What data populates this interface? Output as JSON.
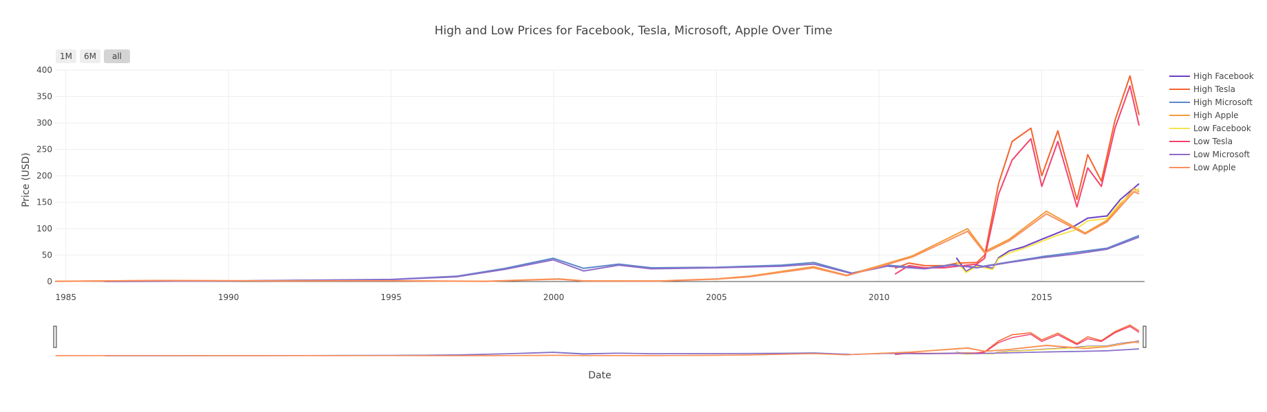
{
  "chart_data": {
    "type": "line",
    "title": "High and Low Prices for Facebook, Tesla, Microsoft, Apple Over Time",
    "xlabel": "Date",
    "ylabel": "Price (USD)",
    "xlim": [
      "1984-09-01",
      "2018-03-01"
    ],
    "ylim": [
      0,
      400
    ],
    "x_ticks": [
      "1985",
      "1990",
      "1995",
      "2000",
      "2005",
      "2010",
      "2015"
    ],
    "y_ticks": [
      "0",
      "50",
      "100",
      "150",
      "200",
      "250",
      "300",
      "350",
      "400"
    ],
    "grid": true,
    "legend_position": "right",
    "range_selector": {
      "buttons": [
        "1M",
        "6M",
        "all"
      ],
      "active": "all"
    },
    "range_slider": true,
    "series": [
      {
        "name": "High Facebook",
        "color": "#6a3fc4",
        "points": [
          [
            "2012-05-18",
            45
          ],
          [
            "2012-09-04",
            19
          ],
          [
            "2013-01-02",
            31
          ],
          [
            "2013-07-01",
            25
          ],
          [
            "2013-09-03",
            45
          ],
          [
            "2014-01-02",
            58
          ],
          [
            "2014-06-02",
            65
          ],
          [
            "2015-01-02",
            80
          ],
          [
            "2015-06-01",
            90
          ],
          [
            "2016-01-04",
            105
          ],
          [
            "2016-06-01",
            120
          ],
          [
            "2017-01-03",
            124
          ],
          [
            "2017-06-01",
            155
          ],
          [
            "2017-12-29",
            185
          ]
        ]
      },
      {
        "name": "High Tesla",
        "color": "#f4622c",
        "points": [
          [
            "2010-06-29",
            25
          ],
          [
            "2010-12-01",
            35
          ],
          [
            "2011-06-01",
            30
          ],
          [
            "2012-01-03",
            30
          ],
          [
            "2012-06-01",
            35
          ],
          [
            "2013-01-02",
            36
          ],
          [
            "2013-04-01",
            50
          ],
          [
            "2013-09-03",
            185
          ],
          [
            "2014-02-03",
            265
          ],
          [
            "2014-09-02",
            290
          ],
          [
            "2015-01-02",
            200
          ],
          [
            "2015-07-01",
            285
          ],
          [
            "2016-02-01",
            155
          ],
          [
            "2016-06-01",
            240
          ],
          [
            "2016-11-01",
            190
          ],
          [
            "2017-04-03",
            305
          ],
          [
            "2017-09-18",
            389
          ],
          [
            "2017-12-29",
            315
          ]
        ]
      },
      {
        "name": "High Microsoft",
        "color": "#5b86c9",
        "points": [
          [
            "1986-03-13",
            0.1
          ],
          [
            "1990-01-02",
            1.2
          ],
          [
            "1995-01-03",
            4
          ],
          [
            "1997-01-02",
            10
          ],
          [
            "1998-07-01",
            25
          ],
          [
            "1999-12-27",
            44
          ],
          [
            "2000-12-01",
            25
          ],
          [
            "2002-01-02",
            33
          ],
          [
            "2003-01-02",
            26
          ],
          [
            "2005-01-03",
            27
          ],
          [
            "2007-01-03",
            31
          ],
          [
            "2008-01-02",
            36
          ],
          [
            "2009-03-02",
            16
          ],
          [
            "2010-04-01",
            31
          ],
          [
            "2011-06-01",
            25
          ],
          [
            "2012-04-02",
            32
          ],
          [
            "2013-01-02",
            27
          ],
          [
            "2014-01-02",
            37
          ],
          [
            "2015-01-02",
            47
          ],
          [
            "2016-01-04",
            55
          ],
          [
            "2017-01-03",
            63
          ],
          [
            "2017-12-29",
            87
          ]
        ]
      },
      {
        "name": "High Apple",
        "color": "#f39c3c",
        "points": [
          [
            "1984-09-07",
            0.5
          ],
          [
            "1987-10-01",
            2
          ],
          [
            "1991-06-01",
            1.3
          ],
          [
            "1995-01-03",
            1.4
          ],
          [
            "1997-12-01",
            0.5
          ],
          [
            "2000-03-01",
            5
          ],
          [
            "2000-12-01",
            1.3
          ],
          [
            "2003-04-01",
            1
          ],
          [
            "2005-01-03",
            5
          ],
          [
            "2006-01-03",
            10
          ],
          [
            "2007-12-27",
            28
          ],
          [
            "2009-01-02",
            12
          ],
          [
            "2010-01-04",
            30
          ],
          [
            "2011-01-03",
            48
          ],
          [
            "2012-09-21",
            100
          ],
          [
            "2013-04-01",
            57
          ],
          [
            "2014-01-02",
            80
          ],
          [
            "2015-02-23",
            133
          ],
          [
            "2016-05-02",
            92
          ],
          [
            "2017-01-03",
            116
          ],
          [
            "2017-11-01",
            176
          ],
          [
            "2017-12-29",
            170
          ]
        ]
      },
      {
        "name": "Low Facebook",
        "color": "#f7e34a",
        "points": [
          [
            "2012-05-18",
            38
          ],
          [
            "2012-09-04",
            17
          ],
          [
            "2013-01-02",
            29
          ],
          [
            "2013-07-01",
            23
          ],
          [
            "2013-09-03",
            43
          ],
          [
            "2014-01-02",
            54
          ],
          [
            "2014-06-02",
            62
          ],
          [
            "2015-01-02",
            76
          ],
          [
            "2015-06-01",
            86
          ],
          [
            "2016-01-04",
            97
          ],
          [
            "2016-06-01",
            115
          ],
          [
            "2017-01-03",
            119
          ],
          [
            "2017-06-01",
            149
          ],
          [
            "2017-12-29",
            176
          ]
        ]
      },
      {
        "name": "Low Tesla",
        "color": "#f4426e",
        "points": [
          [
            "2010-06-29",
            14
          ],
          [
            "2010-12-01",
            30
          ],
          [
            "2011-06-01",
            26
          ],
          [
            "2012-01-03",
            26
          ],
          [
            "2012-06-01",
            29
          ],
          [
            "2013-01-02",
            33
          ],
          [
            "2013-04-01",
            44
          ],
          [
            "2013-09-03",
            165
          ],
          [
            "2014-02-03",
            230
          ],
          [
            "2014-09-02",
            270
          ],
          [
            "2015-01-02",
            180
          ],
          [
            "2015-07-01",
            265
          ],
          [
            "2016-02-01",
            141
          ],
          [
            "2016-06-01",
            215
          ],
          [
            "2016-11-01",
            180
          ],
          [
            "2017-04-03",
            290
          ],
          [
            "2017-09-18",
            370
          ],
          [
            "2017-12-29",
            295
          ]
        ]
      },
      {
        "name": "Low Microsoft",
        "color": "#8e6bc9",
        "points": [
          [
            "1986-03-13",
            0.09
          ],
          [
            "1990-01-02",
            1.1
          ],
          [
            "1995-01-03",
            3.7
          ],
          [
            "1997-01-02",
            9
          ],
          [
            "1998-07-01",
            23
          ],
          [
            "1999-12-27",
            41
          ],
          [
            "2000-12-01",
            20
          ],
          [
            "2002-01-02",
            31
          ],
          [
            "2003-01-02",
            24
          ],
          [
            "2005-01-03",
            26
          ],
          [
            "2007-01-03",
            29
          ],
          [
            "2008-01-02",
            33
          ],
          [
            "2009-03-02",
            15
          ],
          [
            "2010-04-01",
            29
          ],
          [
            "2011-06-01",
            24
          ],
          [
            "2012-04-02",
            31
          ],
          [
            "2013-01-02",
            26
          ],
          [
            "2014-01-02",
            36
          ],
          [
            "2015-01-02",
            45
          ],
          [
            "2016-01-04",
            52
          ],
          [
            "2017-01-03",
            61
          ],
          [
            "2017-12-29",
            84
          ]
        ]
      },
      {
        "name": "Low Apple",
        "color": "#fb8e5a",
        "points": [
          [
            "1984-09-07",
            0.4
          ],
          [
            "1987-10-01",
            1.8
          ],
          [
            "1991-06-01",
            1.2
          ],
          [
            "1995-01-03",
            1.3
          ],
          [
            "1997-12-01",
            0.4
          ],
          [
            "2000-03-01",
            4.6
          ],
          [
            "2000-12-01",
            1.1
          ],
          [
            "2003-04-01",
            0.9
          ],
          [
            "2005-01-03",
            4.6
          ],
          [
            "2006-01-03",
            9
          ],
          [
            "2007-12-27",
            26
          ],
          [
            "2009-01-02",
            11
          ],
          [
            "2010-01-04",
            28
          ],
          [
            "2011-01-03",
            46
          ],
          [
            "2012-09-21",
            95
          ],
          [
            "2013-04-01",
            54
          ],
          [
            "2014-01-02",
            77
          ],
          [
            "2015-02-23",
            128
          ],
          [
            "2016-05-02",
            90
          ],
          [
            "2017-01-03",
            113
          ],
          [
            "2017-11-01",
            170
          ],
          [
            "2017-12-29",
            166
          ]
        ]
      }
    ]
  }
}
